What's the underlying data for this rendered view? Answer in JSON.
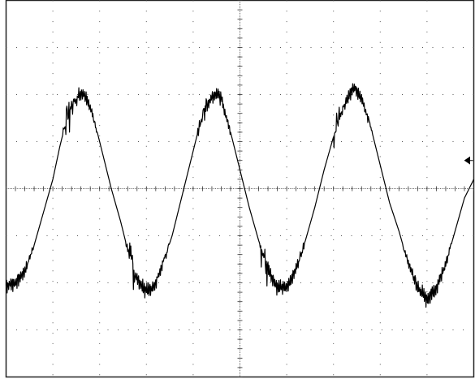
{
  "chart_data": {
    "type": "line",
    "title": "",
    "xlabel": "",
    "ylabel": "",
    "x_divisions": 10,
    "y_divisions": 8,
    "xlim": [
      0,
      10
    ],
    "ylim": [
      -4,
      4
    ],
    "grid": true,
    "grid_style": "dotted",
    "ground_marker": "left-arrow",
    "series": [
      {
        "values": [
          [
            0.0,
            -2.05
          ],
          [
            0.2,
            -2.0
          ],
          [
            0.4,
            -1.75
          ],
          [
            0.6,
            -1.2
          ],
          [
            0.8,
            -0.5
          ],
          [
            1.0,
            0.2
          ],
          [
            1.15,
            0.9
          ],
          [
            1.3,
            1.5
          ],
          [
            1.4,
            1.75
          ],
          [
            1.55,
            1.98
          ],
          [
            1.62,
            2.05
          ],
          [
            1.72,
            1.95
          ],
          [
            1.9,
            1.4
          ],
          [
            2.05,
            0.8
          ],
          [
            2.25,
            0.0
          ],
          [
            2.45,
            -0.7
          ],
          [
            2.6,
            -1.3
          ],
          [
            2.75,
            -1.8
          ],
          [
            2.95,
            -2.15
          ],
          [
            3.15,
            -2.1
          ],
          [
            3.35,
            -1.6
          ],
          [
            3.55,
            -1.0
          ],
          [
            3.75,
            -0.2
          ],
          [
            3.95,
            0.6
          ],
          [
            4.1,
            1.2
          ],
          [
            4.25,
            1.7
          ],
          [
            4.4,
            1.95
          ],
          [
            4.5,
            2.05
          ],
          [
            4.6,
            1.9
          ],
          [
            4.8,
            1.2
          ],
          [
            5.0,
            0.4
          ],
          [
            5.2,
            -0.4
          ],
          [
            5.4,
            -1.1
          ],
          [
            5.6,
            -1.7
          ],
          [
            5.8,
            -2.1
          ],
          [
            6.0,
            -2.1
          ],
          [
            6.2,
            -1.7
          ],
          [
            6.4,
            -1.1
          ],
          [
            6.6,
            -0.4
          ],
          [
            6.8,
            0.4
          ],
          [
            7.0,
            1.1
          ],
          [
            7.2,
            1.7
          ],
          [
            7.35,
            2.0
          ],
          [
            7.45,
            2.15
          ],
          [
            7.6,
            1.95
          ],
          [
            7.8,
            1.3
          ],
          [
            8.0,
            0.5
          ],
          [
            8.2,
            -0.3
          ],
          [
            8.4,
            -0.9
          ],
          [
            8.6,
            -1.6
          ],
          [
            8.8,
            -2.1
          ],
          [
            9.0,
            -2.35
          ],
          [
            9.2,
            -2.1
          ],
          [
            9.4,
            -1.6
          ],
          [
            9.6,
            -0.9
          ],
          [
            9.8,
            -0.2
          ],
          [
            10.0,
            0.2
          ]
        ]
      }
    ]
  }
}
